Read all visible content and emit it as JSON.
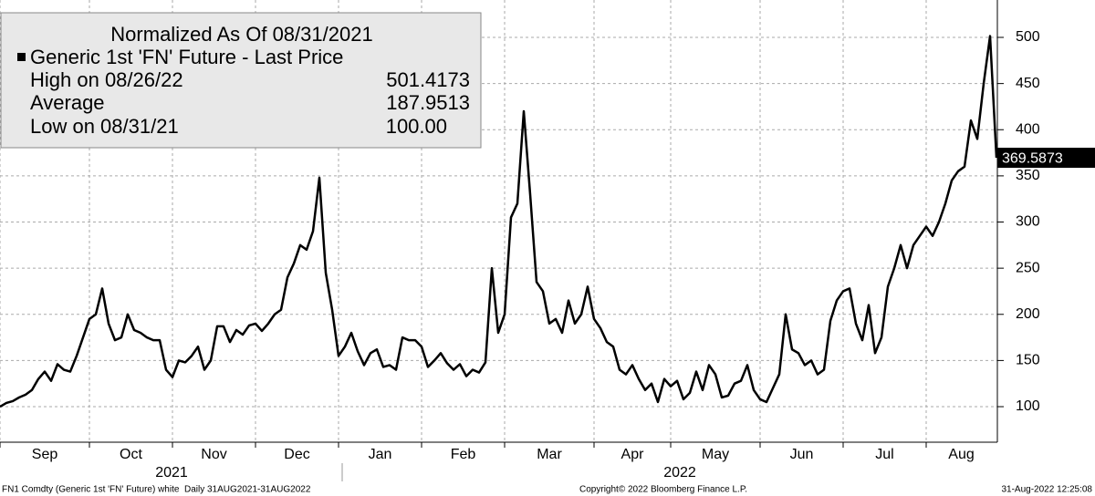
{
  "chart_data": {
    "type": "line",
    "legend_title": "Normalized As Of 08/31/2021",
    "stats": [
      {
        "label": "High on 08/26/22",
        "value": "501.4173"
      },
      {
        "label": "Average",
        "value": "187.9513"
      },
      {
        "label": "Low on 08/31/21",
        "value": "100.00"
      }
    ],
    "categories": [
      "Sep",
      null,
      null,
      null,
      null,
      null,
      null,
      null,
      null,
      null,
      null,
      null,
      null,
      null,
      "Oct",
      null,
      null,
      null,
      null,
      null,
      null,
      null,
      null,
      null,
      null,
      null,
      null,
      "Nov",
      null,
      null,
      null,
      null,
      null,
      null,
      null,
      null,
      null,
      null,
      null,
      null,
      "Dec",
      null,
      null,
      null,
      null,
      null,
      null,
      null,
      null,
      null,
      null,
      null,
      null,
      "Jan",
      null,
      null,
      null,
      null,
      null,
      null,
      null,
      null,
      null,
      null,
      null,
      null,
      "Feb",
      null,
      null,
      null,
      null,
      null,
      null,
      null,
      null,
      null,
      null,
      null,
      null,
      "Mar",
      null,
      null,
      null,
      null,
      null,
      null,
      null,
      null,
      null,
      null,
      null,
      null,
      null,
      "Apr",
      null,
      null,
      null,
      null,
      null,
      null,
      null,
      null,
      null,
      null,
      null,
      "May",
      null,
      null,
      null,
      null,
      null,
      null,
      null,
      null,
      null,
      null,
      null,
      null,
      null,
      "Jun",
      null,
      null,
      null,
      null,
      null,
      null,
      null,
      null,
      null,
      null,
      null,
      null,
      "Jul",
      null,
      null,
      null,
      null,
      null,
      null,
      null,
      null,
      null,
      null,
      null,
      null,
      "Aug",
      null,
      null,
      null,
      null,
      null,
      null,
      null,
      null,
      null,
      null,
      null
    ],
    "year_labels": [
      "2021",
      "2022"
    ],
    "series": [
      {
        "name": "Generic 1st 'FN' Future - Last Price",
        "color": "#000000",
        "values": [
          100,
          104,
          106,
          110,
          113,
          118,
          130,
          138,
          128,
          146,
          140,
          138,
          155,
          175,
          195,
          200,
          228,
          190,
          172,
          175,
          200,
          183,
          180,
          175,
          172,
          172,
          140,
          132,
          150,
          148,
          155,
          165,
          140,
          150,
          187,
          187,
          170,
          183,
          178,
          188,
          190,
          182,
          190,
          200,
          205,
          240,
          255,
          275,
          270,
          290,
          348,
          245,
          205,
          155,
          165,
          180,
          160,
          145,
          158,
          162,
          143,
          145,
          140,
          175,
          172,
          172,
          165,
          143,
          150,
          158,
          147,
          140,
          146,
          133,
          140,
          137,
          148,
          250,
          180,
          200,
          305,
          320,
          420,
          330,
          235,
          225,
          190,
          195,
          180,
          215,
          190,
          200,
          230,
          195,
          185,
          170,
          165,
          140,
          135,
          145,
          130,
          118,
          125,
          105,
          130,
          122,
          128,
          108,
          115,
          138,
          118,
          145,
          135,
          110,
          112,
          125,
          128,
          145,
          118,
          108,
          105,
          120,
          135,
          200,
          162,
          158,
          145,
          150,
          135,
          140,
          193,
          215,
          225,
          228,
          190,
          172,
          210,
          158,
          175,
          230,
          250,
          275,
          250,
          275,
          285,
          295,
          285,
          300,
          320,
          345,
          355,
          360,
          410,
          390,
          450,
          501.4173,
          369.5873
        ]
      }
    ],
    "ylim": [
      61.5,
      540.5
    ],
    "yticks": [
      100,
      150,
      200,
      250,
      300,
      350,
      400,
      450,
      500
    ],
    "grid": true,
    "footer_left": "FN1 Comdty (Generic 1st 'FN' Future) white  Daily 31AUG2021-31AUG2022",
    "footer_center": "Copyright© 2022 Bloomberg Finance L.P.",
    "footer_right": "31-Aug-2022 12:25:08"
  }
}
